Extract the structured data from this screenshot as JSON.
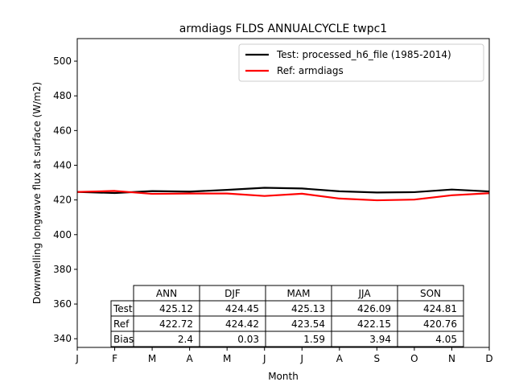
{
  "chart_data": {
    "type": "line",
    "title": "armdiags FLDS ANNUALCYCLE twpc1",
    "xlabel": "Month",
    "ylabel": "Downwelling longwave flux at surface (W/m2)",
    "x_ticks": [
      "J",
      "F",
      "M",
      "A",
      "M",
      "J",
      "J",
      "A",
      "S",
      "O",
      "N",
      "D"
    ],
    "xlim": [
      1,
      12
    ],
    "ylim": [
      335,
      513
    ],
    "y_ticks": [
      340,
      360,
      380,
      400,
      420,
      440,
      460,
      480,
      500
    ],
    "legend_position": "upper-right",
    "series": [
      {
        "name": "Test: processed_h6_file (1985-2014)",
        "color": "#000000",
        "x": [
          1,
          2,
          3,
          4,
          5,
          6,
          7,
          8,
          9,
          10,
          11,
          12
        ],
        "values": [
          424.6,
          424.0,
          425.1,
          424.8,
          425.8,
          427.0,
          426.6,
          425.0,
          424.3,
          424.5,
          426.0,
          424.9
        ]
      },
      {
        "name": "Ref: armdiags",
        "color": "#ff0000",
        "x": [
          1,
          2,
          3,
          4,
          5,
          6,
          7,
          8,
          9,
          10,
          11,
          12
        ],
        "values": [
          424.6,
          425.2,
          423.5,
          423.7,
          423.7,
          422.3,
          423.6,
          420.8,
          419.8,
          420.2,
          422.7,
          423.9
        ]
      }
    ],
    "table": {
      "columns": [
        "ANN",
        "DJF",
        "MAM",
        "JJA",
        "SON"
      ],
      "rows": [
        {
          "label": "Test",
          "values": [
            "425.12",
            "424.45",
            "425.13",
            "426.09",
            "424.81"
          ]
        },
        {
          "label": "Ref",
          "values": [
            "422.72",
            "424.42",
            "423.54",
            "422.15",
            "420.76"
          ]
        },
        {
          "label": "Bias",
          "values": [
            "2.4",
            "0.03",
            "1.59",
            "3.94",
            "4.05"
          ]
        }
      ]
    }
  }
}
